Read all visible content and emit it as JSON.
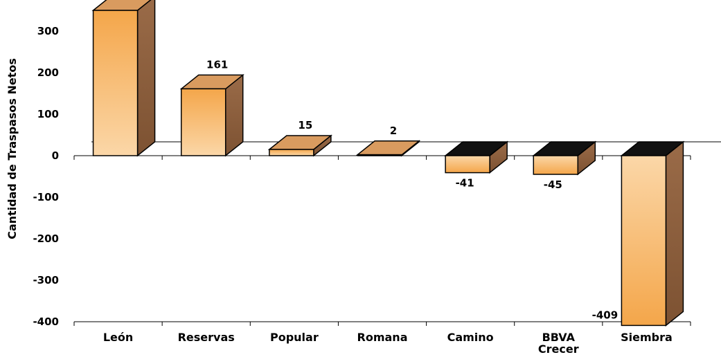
{
  "chart_data": {
    "type": "bar",
    "ylabel": "Cantidad de Traspasos Netos",
    "ylim": [
      -400,
      350
    ],
    "yticks": [
      300,
      200,
      100,
      0,
      -100,
      -200,
      -300,
      -400
    ],
    "categories": [
      "León",
      "Reservas",
      "Popular",
      "Romana",
      "Camino",
      "BBVA\nCrecer",
      "Siembra"
    ],
    "values": [
      350,
      161,
      15,
      2,
      -41,
      -45,
      -409
    ],
    "data_labels": [
      "",
      "161",
      "15",
      "2",
      "-41",
      "-45",
      "-409"
    ],
    "style": "3d-bars",
    "colors": {
      "front_light": "#fbd7a8",
      "front_dark": "#f4a64a",
      "side": "#8b5e3c",
      "top": "#d4955a",
      "outline": "#000000"
    }
  }
}
